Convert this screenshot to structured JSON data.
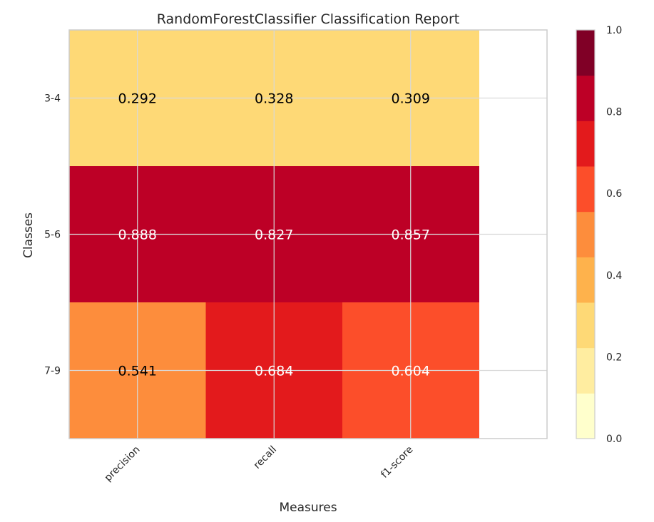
{
  "chart_data": {
    "type": "heatmap",
    "title": "RandomForestClassifier Classification Report",
    "xlabel": "Measures",
    "ylabel": "Classes",
    "x_categories": [
      "precision",
      "recall",
      "f1-score"
    ],
    "y_categories": [
      "3-4",
      "5-6",
      "7-9"
    ],
    "values": [
      [
        0.292,
        0.328,
        0.309
      ],
      [
        0.888,
        0.827,
        0.857
      ],
      [
        0.541,
        0.684,
        0.604
      ]
    ],
    "value_labels": [
      [
        "0.292",
        "0.328",
        "0.309"
      ],
      [
        "0.888",
        "0.827",
        "0.857"
      ],
      [
        "0.541",
        "0.684",
        "0.604"
      ]
    ],
    "colorbar": {
      "range": [
        0,
        1
      ],
      "ticks": [
        "0.0",
        "0.2",
        "0.4",
        "0.6",
        "0.8",
        "1.0"
      ],
      "bins": 9,
      "colormap": [
        "#ffffcc",
        "#ffeda0",
        "#fed976",
        "#feb24c",
        "#fd8d3c",
        "#fc4e2a",
        "#e31a1c",
        "#bd0026",
        "#800026"
      ]
    },
    "grid": true
  }
}
